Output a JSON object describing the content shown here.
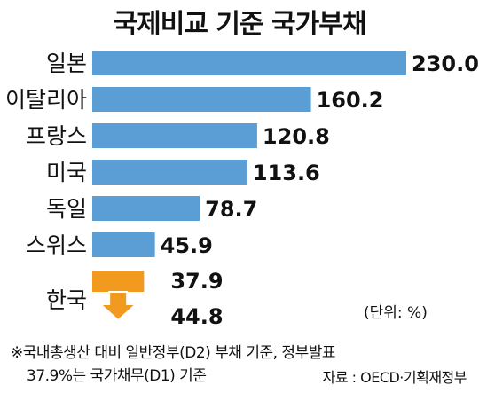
{
  "title": "국제비교 기준 국가부채",
  "unit": "(단위: %)",
  "notes": [
    "※국내총생산 대비 일반정부(D2) 부채 기준, 정부발표",
    "37.9%는 국가채무(D1) 기준"
  ],
  "source": "자료 : OECD·기획재정부",
  "colors": {
    "bar": "#5b9ed6",
    "highlight": "#f29a1f",
    "text": "#111111"
  },
  "chart_data": {
    "type": "bar",
    "orientation": "horizontal",
    "title": "국제비교 기준 국가부채",
    "xlim": [
      0,
      230
    ],
    "grid": false,
    "categories": [
      "일본",
      "이탈리아",
      "프랑스",
      "미국",
      "독일",
      "스위스"
    ],
    "values": [
      230.0,
      160.2,
      120.8,
      113.6,
      78.7,
      45.9
    ],
    "value_labels": [
      "230.0",
      "160.2",
      "120.8",
      "113.6",
      "78.7",
      "45.9"
    ],
    "highlight": {
      "category": "한국",
      "values": [
        37.9,
        44.8
      ],
      "value_labels": [
        "37.9",
        "44.8"
      ]
    }
  }
}
